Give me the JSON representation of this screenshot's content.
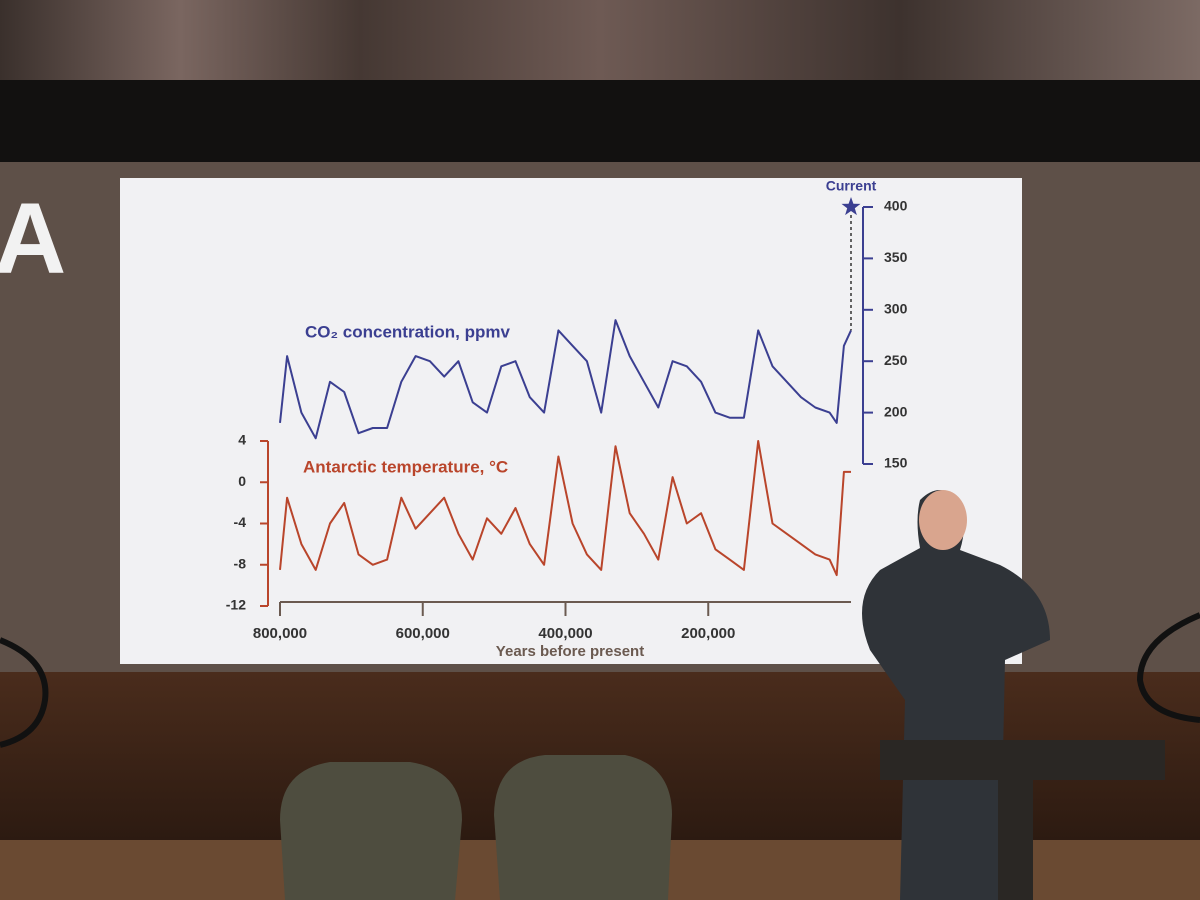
{
  "sign_text": "A",
  "chart_data": {
    "type": "line",
    "x_label": "Years before present",
    "x": [
      800000,
      790000,
      770000,
      750000,
      730000,
      710000,
      690000,
      670000,
      650000,
      630000,
      610000,
      590000,
      570000,
      550000,
      530000,
      510000,
      490000,
      470000,
      450000,
      430000,
      410000,
      390000,
      370000,
      350000,
      330000,
      310000,
      290000,
      270000,
      250000,
      230000,
      210000,
      190000,
      170000,
      150000,
      130000,
      110000,
      90000,
      70000,
      50000,
      30000,
      20000,
      10000,
      0
    ],
    "series": [
      {
        "name": "CO₂ concentration, ppmv",
        "color": "#3b3f91",
        "axis": "y2",
        "values": [
          190,
          255,
          200,
          175,
          230,
          220,
          180,
          185,
          185,
          230,
          255,
          250,
          235,
          250,
          210,
          200,
          245,
          250,
          215,
          200,
          280,
          265,
          250,
          200,
          290,
          255,
          230,
          205,
          250,
          245,
          230,
          200,
          195,
          195,
          280,
          245,
          230,
          215,
          205,
          200,
          190,
          265,
          280
        ]
      },
      {
        "name": "Antarctic temperature, °C",
        "color": "#b9452b",
        "values": [
          -8.5,
          -1.5,
          -6,
          -8.5,
          -4,
          -2,
          -7,
          -8,
          -7.5,
          -1.5,
          -4.5,
          -3,
          -1.5,
          -5,
          -7.5,
          -3.5,
          -5,
          -2.5,
          -6,
          -8,
          2.5,
          -4,
          -7,
          -8.5,
          3.5,
          -3,
          -5,
          -7.5,
          0.5,
          -4,
          -3,
          -6.5,
          -7.5,
          -8.5,
          4,
          -4,
          -5,
          -6,
          -7,
          -7.5,
          -9,
          1,
          1
        ]
      }
    ],
    "xlim": [
      800000,
      0
    ],
    "xticks": [
      {
        "value": 800000,
        "label": "800,000"
      },
      {
        "value": 600000,
        "label": "600,000"
      },
      {
        "value": 400000,
        "label": "400,000"
      },
      {
        "value": 200000,
        "label": "200,000"
      }
    ],
    "ylim": [
      -12,
      4
    ],
    "yticks": [
      -12,
      -8,
      -4,
      0,
      4
    ],
    "y2lim": [
      150,
      400
    ],
    "y2ticks": [
      150,
      200,
      250,
      300,
      350,
      400
    ],
    "annotations": [
      {
        "text": "Current",
        "x": 0,
        "y": 400
      }
    ]
  }
}
